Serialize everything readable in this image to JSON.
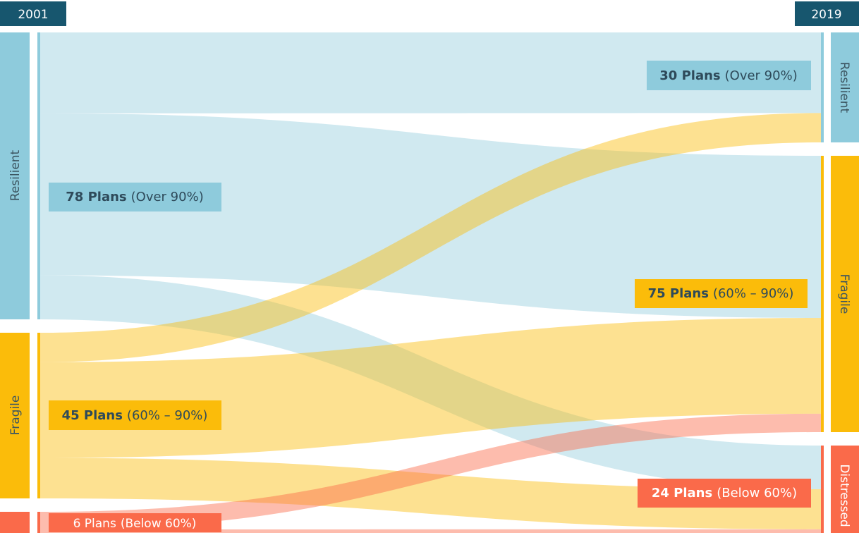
{
  "left_year": "2001",
  "right_year": "2019",
  "colors": {
    "resilient": "#8ecbdc",
    "fragile": "#fbbc0a",
    "distressed": "#fa6a4a",
    "header": "#17566e",
    "label_text": "#2e4a5a"
  },
  "left_nodes": [
    {
      "id": "resilient",
      "name": "Resilient",
      "plans": "78 Plans",
      "range": "(Over 90%)"
    },
    {
      "id": "fragile",
      "name": "Fragile",
      "plans": "45 Plans",
      "range": "(60% – 90%)"
    },
    {
      "id": "distressed",
      "name": "",
      "plans": "6 Plans",
      "range": "(Below 60%)"
    }
  ],
  "right_nodes": [
    {
      "id": "resilient",
      "name": "Resilient",
      "plans": "30 Plans",
      "range": "(Over 90%)"
    },
    {
      "id": "fragile",
      "name": "Fragile",
      "plans": "75 Plans",
      "range": "(60% – 90%)"
    },
    {
      "id": "distressed",
      "name": "Distressed",
      "plans": "24 Plans",
      "range": "(Below 60%)"
    }
  ],
  "flows": [
    {
      "from": "resilient",
      "to": "resilient",
      "value": 22
    },
    {
      "from": "resilient",
      "to": "fragile",
      "value": 44
    },
    {
      "from": "resilient",
      "to": "distressed",
      "value": 12
    },
    {
      "from": "fragile",
      "to": "resilient",
      "value": 8
    },
    {
      "from": "fragile",
      "to": "fragile",
      "value": 26
    },
    {
      "from": "fragile",
      "to": "distressed",
      "value": 11
    },
    {
      "from": "distressed",
      "to": "fragile",
      "value": 5
    },
    {
      "from": "distressed",
      "to": "distressed",
      "value": 1
    }
  ]
}
